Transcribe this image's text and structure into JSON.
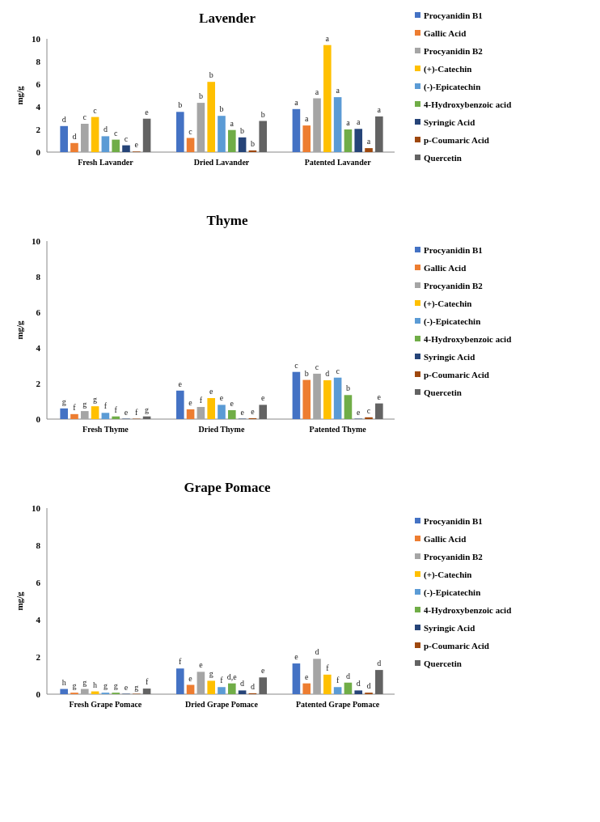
{
  "chart_data": [
    {
      "type": "bar",
      "title": "Lavender",
      "ylabel": "mg/g",
      "categories": [
        "Fresh Lavander",
        "Dried Lavander",
        "Patented Lavander"
      ],
      "ylim": [
        0,
        10
      ],
      "yticks": [
        0,
        2,
        4,
        6,
        8,
        10
      ],
      "grid": false,
      "legend": "right",
      "series": [
        {
          "name": "Procyanidin B1",
          "color": "#4472c4",
          "values": [
            2.3,
            3.55,
            3.8
          ],
          "value_labels": [
            "d",
            "b",
            "a"
          ]
        },
        {
          "name": "Gallic Acid",
          "color": "#ed7d31",
          "values": [
            0.8,
            1.25,
            2.35
          ],
          "value_labels": [
            "d",
            "c",
            "a"
          ]
        },
        {
          "name": "Procyanidin B2",
          "color": "#a5a5a5",
          "values": [
            2.5,
            4.35,
            4.75
          ],
          "value_labels": [
            "c",
            "b",
            "a"
          ]
        },
        {
          "name": "(+)-Catechin",
          "color": "#ffc000",
          "values": [
            3.1,
            6.2,
            9.45
          ],
          "value_labels": [
            "c",
            "b",
            "a"
          ]
        },
        {
          "name": "(-)-Epicatechin",
          "color": "#5b9bd5",
          "values": [
            1.4,
            3.2,
            4.85
          ],
          "value_labels": [
            "d",
            "b",
            "a"
          ]
        },
        {
          "name": "4-Hydroxybenzoic acid",
          "color": "#70ad47",
          "values": [
            1.1,
            1.95,
            2.0
          ],
          "value_labels": [
            "c",
            "a",
            "a"
          ]
        },
        {
          "name": "Syringic Acid",
          "color": "#264478",
          "values": [
            0.6,
            1.3,
            2.05
          ],
          "value_labels": [
            "c",
            "b",
            "a"
          ]
        },
        {
          "name": "p-Coumaric Acid",
          "color": "#9e480e",
          "values": [
            0.05,
            0.15,
            0.35
          ],
          "value_labels": [
            "e",
            "b",
            "a"
          ]
        },
        {
          "name": "Quercetin",
          "color": "#636363",
          "values": [
            2.95,
            2.75,
            3.15
          ],
          "value_labels": [
            "e",
            "b",
            "a"
          ]
        }
      ]
    },
    {
      "type": "bar",
      "title": "Thyme",
      "ylabel": "mg/g",
      "categories": [
        "Fresh Thyme",
        "Dried Thyme",
        "Patented Thyme"
      ],
      "ylim": [
        0,
        10
      ],
      "yticks": [
        0,
        2,
        4,
        6,
        8,
        10
      ],
      "grid": false,
      "legend": "right",
      "series": [
        {
          "name": "Procyanidin B1",
          "color": "#4472c4",
          "values": [
            0.6,
            1.6,
            2.65
          ],
          "value_labels": [
            "g",
            "e",
            "c"
          ]
        },
        {
          "name": "Gallic Acid",
          "color": "#ed7d31",
          "values": [
            0.28,
            0.55,
            2.2
          ],
          "value_labels": [
            "f",
            "e",
            "b"
          ]
        },
        {
          "name": "Procyanidin B2",
          "color": "#a5a5a5",
          "values": [
            0.45,
            0.68,
            2.55
          ],
          "value_labels": [
            "g",
            "f",
            "c"
          ]
        },
        {
          "name": "(+)-Catechin",
          "color": "#ffc000",
          "values": [
            0.72,
            1.18,
            2.18
          ],
          "value_labels": [
            "g",
            "e",
            "d"
          ]
        },
        {
          "name": "(-)-Epicatechin",
          "color": "#5b9bd5",
          "values": [
            0.35,
            0.8,
            2.33
          ],
          "value_labels": [
            "f",
            "e",
            "c"
          ]
        },
        {
          "name": "4-Hydroxybenzoic acid",
          "color": "#70ad47",
          "values": [
            0.15,
            0.5,
            1.35
          ],
          "value_labels": [
            "f",
            "e",
            "b"
          ]
        },
        {
          "name": "Syringic Acid",
          "color": "#264478",
          "values": [
            0.02,
            0.02,
            0.02
          ],
          "value_labels": [
            "e",
            "e",
            "e"
          ]
        },
        {
          "name": "p-Coumaric Acid",
          "color": "#9e480e",
          "values": [
            0.02,
            0.05,
            0.1
          ],
          "value_labels": [
            "f",
            "e",
            "c"
          ]
        },
        {
          "name": "Quercetin",
          "color": "#636363",
          "values": [
            0.15,
            0.8,
            0.88
          ],
          "value_labels": [
            "g",
            "e",
            "e"
          ]
        }
      ]
    },
    {
      "type": "bar",
      "title": "Grape Pomace",
      "ylabel": "mg/g",
      "categories": [
        "Fresh Grape Pomace",
        "Dried Grape Pomace",
        "Patented Grape Pomace"
      ],
      "ylim": [
        0,
        10
      ],
      "yticks": [
        0,
        2,
        4,
        6,
        8,
        10
      ],
      "grid": false,
      "legend": "right",
      "series": [
        {
          "name": "Procyanidin B1",
          "color": "#4472c4",
          "values": [
            0.28,
            1.38,
            1.65
          ],
          "value_labels": [
            "h",
            "f",
            "e"
          ]
        },
        {
          "name": "Gallic Acid",
          "color": "#ed7d31",
          "values": [
            0.08,
            0.5,
            0.58
          ],
          "value_labels": [
            "g",
            "e",
            "e"
          ]
        },
        {
          "name": "Procyanidin B2",
          "color": "#a5a5a5",
          "values": [
            0.28,
            1.2,
            1.9
          ],
          "value_labels": [
            "g",
            "e",
            "d"
          ]
        },
        {
          "name": "(+)-Catechin",
          "color": "#ffc000",
          "values": [
            0.15,
            0.72,
            1.05
          ],
          "value_labels": [
            "h",
            "g",
            "f"
          ]
        },
        {
          "name": "(-)-Epicatechin",
          "color": "#5b9bd5",
          "values": [
            0.08,
            0.38,
            0.38
          ],
          "value_labels": [
            "g",
            "f",
            "f"
          ]
        },
        {
          "name": "4-Hydroxybenzoic acid",
          "color": "#70ad47",
          "values": [
            0.08,
            0.58,
            0.62
          ],
          "value_labels": [
            "g",
            "d,e",
            "d"
          ]
        },
        {
          "name": "Syringic Acid",
          "color": "#264478",
          "values": [
            0.02,
            0.2,
            0.2
          ],
          "value_labels": [
            "e",
            "d",
            "d"
          ]
        },
        {
          "name": "p-Coumaric Acid",
          "color": "#9e480e",
          "values": [
            0.02,
            0.05,
            0.08
          ],
          "value_labels": [
            "g",
            "d",
            "d"
          ]
        },
        {
          "name": "Quercetin",
          "color": "#636363",
          "values": [
            0.3,
            0.9,
            1.3
          ],
          "value_labels": [
            "f",
            "e",
            "d"
          ]
        }
      ]
    }
  ]
}
